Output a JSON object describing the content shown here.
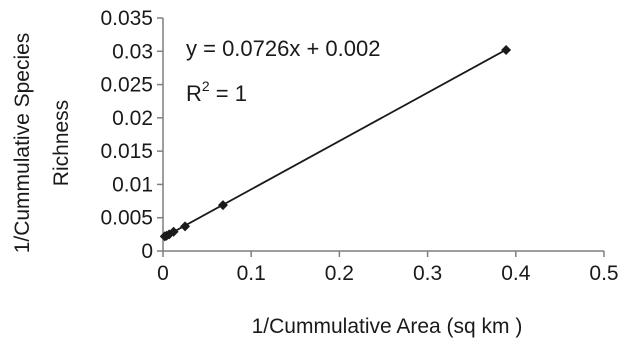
{
  "chart_data": {
    "type": "scatter",
    "title": "",
    "xlabel": "1/Cummulative Area (sq km )",
    "ylabel_lines": [
      "1/Cummulative Species",
      "Richness"
    ],
    "xlim": [
      0,
      0.5
    ],
    "ylim": [
      0,
      0.035
    ],
    "x_ticks": [
      0,
      0.1,
      0.2,
      0.3,
      0.4,
      0.5
    ],
    "x_tick_labels": [
      "0",
      "0.1",
      "0.2",
      "0.3",
      "0.4",
      "0.5"
    ],
    "y_ticks": [
      0,
      0.005,
      0.01,
      0.015,
      0.02,
      0.025,
      0.03,
      0.035
    ],
    "y_tick_labels": [
      "0",
      "0.005",
      "0.01",
      "0.015",
      "0.02",
      "0.025",
      "0.03",
      "0.035"
    ],
    "grid": false,
    "legend": "none",
    "series": [
      {
        "marker": "diamond",
        "color": "#1a1a1a",
        "points": [
          {
            "x": 0.002,
            "y": 0.0022
          },
          {
            "x": 0.004,
            "y": 0.0023
          },
          {
            "x": 0.007,
            "y": 0.0025
          },
          {
            "x": 0.012,
            "y": 0.0029
          },
          {
            "x": 0.025,
            "y": 0.0037
          },
          {
            "x": 0.068,
            "y": 0.0069
          },
          {
            "x": 0.389,
            "y": 0.0302
          }
        ]
      }
    ],
    "trendline": {
      "slope": 0.0726,
      "intercept": 0.002,
      "x_range": [
        0.002,
        0.389
      ],
      "color": "#1a1a1a"
    },
    "annotations": {
      "equation": "y = 0.0726x + 0.002",
      "r2_prefix": "R",
      "r2_superscript": "2",
      "r2_suffix": " = 1"
    }
  }
}
